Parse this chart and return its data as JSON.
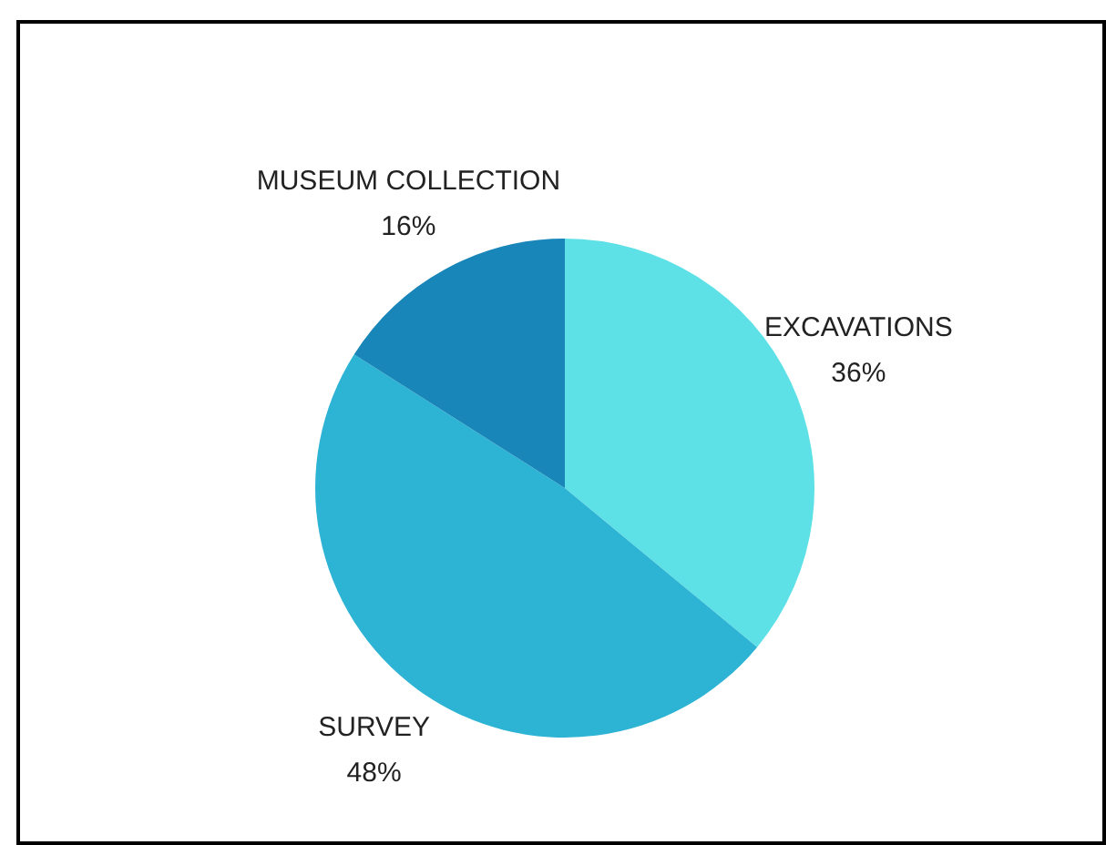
{
  "chart_data": {
    "type": "pie",
    "categories": [
      "EXCAVATIONS",
      "SURVEY",
      "MUSEUM COLLECTION"
    ],
    "values": [
      36,
      48,
      16
    ],
    "value_labels": [
      "36%",
      "48%",
      "16%"
    ],
    "colors": [
      "#5de1e6",
      "#2db3d4",
      "#1986b9"
    ],
    "legend": false
  }
}
